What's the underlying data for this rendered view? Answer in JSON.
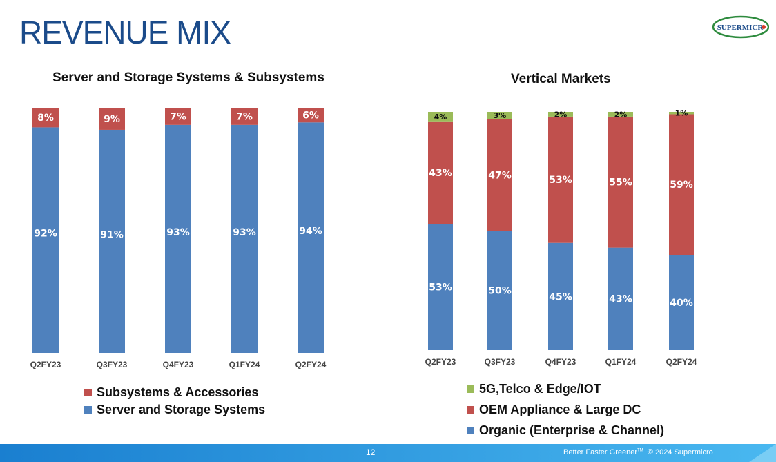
{
  "header": {
    "title": "REVENUE MIX",
    "logo_text": "SUPERMICR"
  },
  "footer": {
    "page_number": "12",
    "tagline": "Better Faster Greener",
    "tm": "TM",
    "copyright": "© 2024 Supermicro"
  },
  "colors": {
    "blue": "#4f81bd",
    "red": "#c0504d",
    "green": "#9bbb59",
    "title": "#1b4b8a",
    "footer": "#1f8fd9"
  },
  "chart_data": [
    {
      "type": "bar",
      "stacked": true,
      "title": "Server and Storage Systems & Subsystems",
      "categories": [
        "Q2FY23",
        "Q3FY23",
        "Q4FY23",
        "Q1FY24",
        "Q2FY24"
      ],
      "series": [
        {
          "name": "Server and Storage Systems",
          "color": "#4f81bd",
          "values": [
            92,
            91,
            93,
            93,
            94
          ],
          "labels": [
            "92%",
            "91%",
            "93%",
            "93%",
            "94%"
          ]
        },
        {
          "name": "Subsystems & Accessories",
          "color": "#c0504d",
          "values": [
            8,
            9,
            7,
            7,
            6
          ],
          "labels": [
            "8%",
            "9%",
            "7%",
            "7%",
            "6%"
          ]
        }
      ],
      "legend_order": [
        "Subsystems & Accessories",
        "Server and Storage Systems"
      ],
      "ylim": [
        0,
        100
      ],
      "legend": "bottom"
    },
    {
      "type": "bar",
      "stacked": true,
      "title": "Vertical Markets",
      "categories": [
        "Q2FY23",
        "Q3FY23",
        "Q4FY23",
        "Q1FY24",
        "Q2FY24"
      ],
      "series": [
        {
          "name": "Organic (Enterprise & Channel)",
          "color": "#4f81bd",
          "values": [
            53,
            50,
            45,
            43,
            40
          ],
          "labels": [
            "53%",
            "50%",
            "45%",
            "43%",
            "40%"
          ]
        },
        {
          "name": "OEM Appliance & Large DC",
          "color": "#c0504d",
          "values": [
            43,
            47,
            53,
            55,
            59
          ],
          "labels": [
            "43%",
            "47%",
            "53%",
            "55%",
            "59%"
          ]
        },
        {
          "name": "5G,Telco & Edge/IOT",
          "color": "#9bbb59",
          "values": [
            4,
            3,
            2,
            2,
            1
          ],
          "labels": [
            "4%",
            "3%",
            "2%",
            "2%",
            "1%"
          ]
        }
      ],
      "legend_order": [
        "5G,Telco & Edge/IOT",
        "OEM Appliance & Large DC",
        "Organic (Enterprise & Channel)"
      ],
      "ylim": [
        0,
        100
      ],
      "legend": "bottom"
    }
  ]
}
